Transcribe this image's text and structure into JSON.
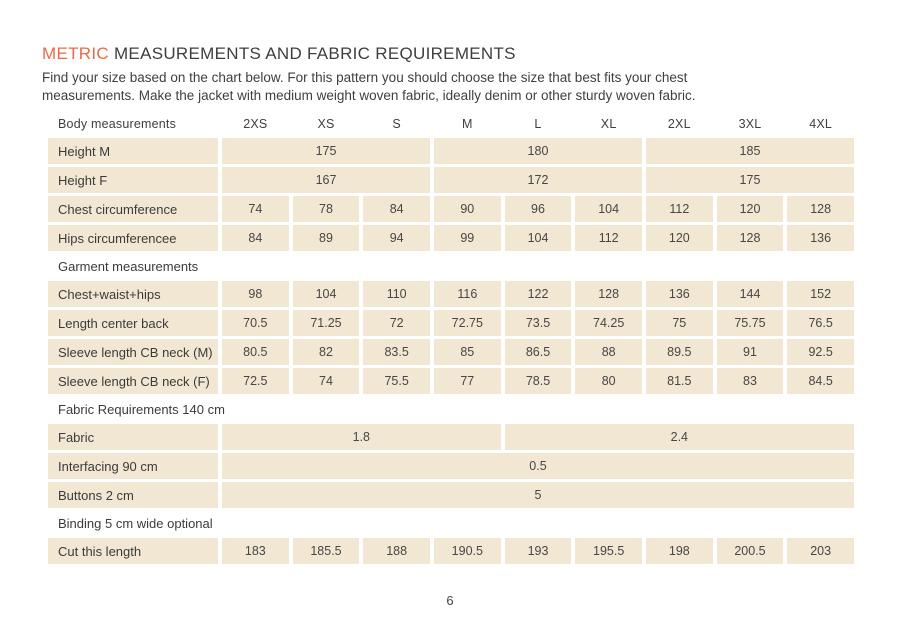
{
  "page": {
    "title_accent": "METRIC",
    "title_rest": "MEASUREMENTS AND FABRIC REQUIREMENTS",
    "intro_line1": "Find your size based on the chart below. For this pattern you should choose the size that best fits your chest",
    "intro_line2": "measurements. Make the jacket with medium weight woven fabric, ideally denim or other sturdy woven fabric.",
    "page_number": "6"
  },
  "colors": {
    "accent": "#e96a48",
    "cell_background": "#f2e7d2",
    "text": "#3b3b3b"
  },
  "table": {
    "header": {
      "label": "Body measurements",
      "sizes": [
        "2XS",
        "XS",
        "S",
        "M",
        "L",
        "XL",
        "2XL",
        "3XL",
        "4XL"
      ]
    },
    "rows": [
      {
        "type": "data",
        "label": "Height M",
        "cells": [
          {
            "span": 3,
            "value": "175"
          },
          {
            "span": 3,
            "value": "180"
          },
          {
            "span": 3,
            "value": "185"
          }
        ]
      },
      {
        "type": "data",
        "label": "Height F",
        "cells": [
          {
            "span": 3,
            "value": "167"
          },
          {
            "span": 3,
            "value": "172"
          },
          {
            "span": 3,
            "value": "175"
          }
        ]
      },
      {
        "type": "data",
        "label": "Chest circumference",
        "cells": [
          {
            "span": 1,
            "value": "74"
          },
          {
            "span": 1,
            "value": "78"
          },
          {
            "span": 1,
            "value": "84"
          },
          {
            "span": 1,
            "value": "90"
          },
          {
            "span": 1,
            "value": "96"
          },
          {
            "span": 1,
            "value": "104"
          },
          {
            "span": 1,
            "value": "112"
          },
          {
            "span": 1,
            "value": "120"
          },
          {
            "span": 1,
            "value": "128"
          }
        ]
      },
      {
        "type": "data",
        "label": "Hips circumferencee",
        "cells": [
          {
            "span": 1,
            "value": "84"
          },
          {
            "span": 1,
            "value": "89"
          },
          {
            "span": 1,
            "value": "94"
          },
          {
            "span": 1,
            "value": "99"
          },
          {
            "span": 1,
            "value": "104"
          },
          {
            "span": 1,
            "value": "112"
          },
          {
            "span": 1,
            "value": "120"
          },
          {
            "span": 1,
            "value": "128"
          },
          {
            "span": 1,
            "value": "136"
          }
        ]
      },
      {
        "type": "section",
        "label": "Garment measurements"
      },
      {
        "type": "data",
        "label": "Chest+waist+hips",
        "cells": [
          {
            "span": 1,
            "value": "98"
          },
          {
            "span": 1,
            "value": "104"
          },
          {
            "span": 1,
            "value": "110"
          },
          {
            "span": 1,
            "value": "116"
          },
          {
            "span": 1,
            "value": "122"
          },
          {
            "span": 1,
            "value": "128"
          },
          {
            "span": 1,
            "value": "136"
          },
          {
            "span": 1,
            "value": "144"
          },
          {
            "span": 1,
            "value": "152"
          }
        ]
      },
      {
        "type": "data",
        "label": "Length center back",
        "cells": [
          {
            "span": 1,
            "value": "70.5"
          },
          {
            "span": 1,
            "value": "71.25"
          },
          {
            "span": 1,
            "value": "72"
          },
          {
            "span": 1,
            "value": "72.75"
          },
          {
            "span": 1,
            "value": "73.5"
          },
          {
            "span": 1,
            "value": "74.25"
          },
          {
            "span": 1,
            "value": "75"
          },
          {
            "span": 1,
            "value": "75.75"
          },
          {
            "span": 1,
            "value": "76.5"
          }
        ]
      },
      {
        "type": "data",
        "label": "Sleeve length CB neck (M)",
        "cells": [
          {
            "span": 1,
            "value": "80.5"
          },
          {
            "span": 1,
            "value": "82"
          },
          {
            "span": 1,
            "value": "83.5"
          },
          {
            "span": 1,
            "value": "85"
          },
          {
            "span": 1,
            "value": "86.5"
          },
          {
            "span": 1,
            "value": "88"
          },
          {
            "span": 1,
            "value": "89.5"
          },
          {
            "span": 1,
            "value": "91"
          },
          {
            "span": 1,
            "value": "92.5"
          }
        ]
      },
      {
        "type": "data",
        "label": "Sleeve length CB neck (F)",
        "cells": [
          {
            "span": 1,
            "value": "72.5"
          },
          {
            "span": 1,
            "value": "74"
          },
          {
            "span": 1,
            "value": "75.5"
          },
          {
            "span": 1,
            "value": "77"
          },
          {
            "span": 1,
            "value": "78.5"
          },
          {
            "span": 1,
            "value": "80"
          },
          {
            "span": 1,
            "value": "81.5"
          },
          {
            "span": 1,
            "value": "83"
          },
          {
            "span": 1,
            "value": "84.5"
          }
        ]
      },
      {
        "type": "section",
        "label": "Fabric Requirements 140 cm"
      },
      {
        "type": "data",
        "label": "Fabric",
        "cells": [
          {
            "span": 4,
            "value": "1.8"
          },
          {
            "span": 5,
            "value": "2.4"
          }
        ]
      },
      {
        "type": "data",
        "label": "Interfacing 90 cm",
        "cells": [
          {
            "span": 9,
            "value": "0.5"
          }
        ]
      },
      {
        "type": "data",
        "label": "Buttons 2 cm",
        "cells": [
          {
            "span": 9,
            "value": "5"
          }
        ]
      },
      {
        "type": "section",
        "label": "Binding 5 cm wide optional"
      },
      {
        "type": "data",
        "label": "Cut this length",
        "cells": [
          {
            "span": 1,
            "value": "183"
          },
          {
            "span": 1,
            "value": "185.5"
          },
          {
            "span": 1,
            "value": "188"
          },
          {
            "span": 1,
            "value": "190.5"
          },
          {
            "span": 1,
            "value": "193"
          },
          {
            "span": 1,
            "value": "195.5"
          },
          {
            "span": 1,
            "value": "198"
          },
          {
            "span": 1,
            "value": "200.5"
          },
          {
            "span": 1,
            "value": "203"
          }
        ]
      }
    ]
  }
}
